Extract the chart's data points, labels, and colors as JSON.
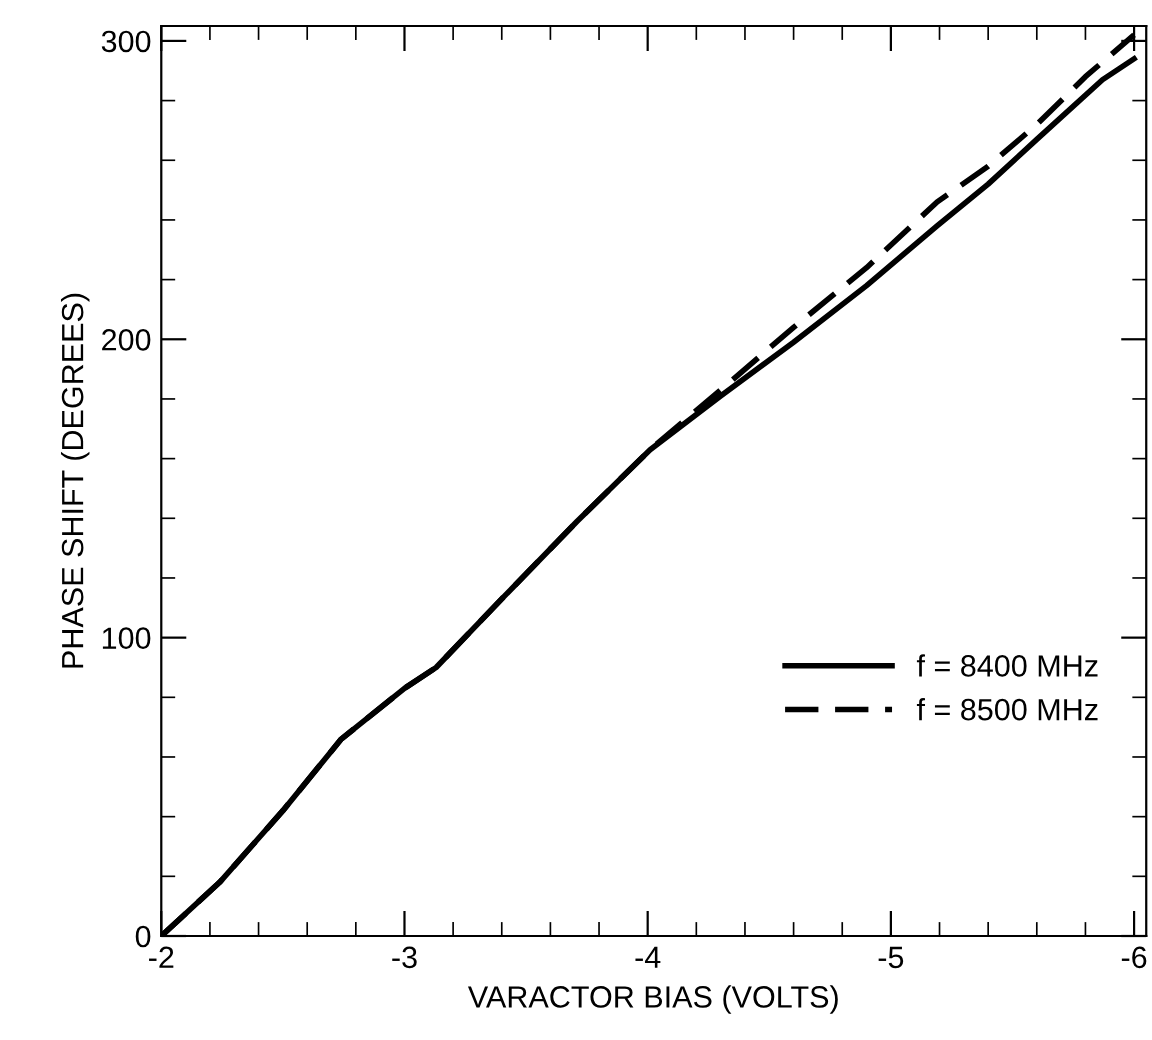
{
  "chart_data": {
    "type": "line",
    "xlabel": "VARACTOR BIAS (VOLTS)",
    "ylabel": "PHASE SHIFT (DEGREES)",
    "xlim": [
      -2,
      -6.05
    ],
    "ylim": [
      0,
      305
    ],
    "xticks": [
      -2,
      -3,
      -4,
      -5,
      -6
    ],
    "yticks": [
      0,
      100,
      200,
      300
    ],
    "grid": false,
    "legend": "bottom right",
    "series": [
      {
        "name": "f = 8400 MHz",
        "color": "#000000",
        "line_style": "solid",
        "x": [
          -2,
          -2.24,
          -2.5,
          -2.74,
          -3.0,
          -3.13,
          -3.4,
          -3.71,
          -4.01,
          -4.3,
          -4.6,
          -4.9,
          -5.19,
          -5.4,
          -5.6,
          -5.87,
          -6.0
        ],
        "values": [
          0,
          18,
          42,
          66,
          83,
          90,
          113,
          139,
          163,
          181,
          199,
          218,
          238,
          252,
          267,
          287,
          294
        ]
      },
      {
        "name": "f = 8500 MHz",
        "color": "#000000",
        "line_style": "dashed",
        "x": [
          -2,
          -2.24,
          -2.5,
          -2.74,
          -3.0,
          -3.13,
          -3.4,
          -3.71,
          -4.01,
          -4.3,
          -4.6,
          -4.9,
          -5.19,
          -5.4,
          -5.6,
          -5.8,
          -6.0
        ],
        "values": [
          0,
          18,
          42,
          66,
          83,
          90,
          113,
          139,
          163,
          183,
          204,
          224,
          246,
          258,
          272,
          288,
          302
        ]
      }
    ]
  }
}
